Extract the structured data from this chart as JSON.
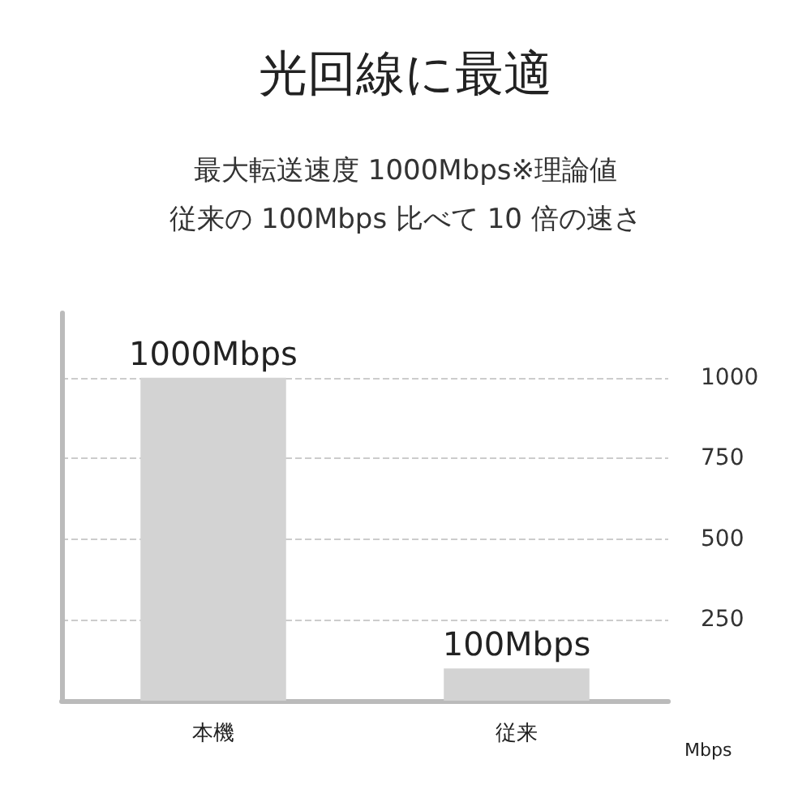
{
  "chart_data": {
    "type": "bar",
    "title": "光回線に最適",
    "subtitle": "最大転送速度 1000Mbps※理論値",
    "annotations": [
      "従来の 100Mbps 比べて 10 倍の速さ"
    ],
    "categories": [
      "本機",
      "従来"
    ],
    "values": [
      1000,
      100
    ],
    "value_labels": [
      "1000Mbps",
      "100Mbps"
    ],
    "color": "#d3d3d3",
    "ylabel": "Mbps",
    "ylim": [
      0,
      1200
    ],
    "yticks": [
      250,
      500,
      750,
      1000
    ],
    "grid": "y"
  }
}
